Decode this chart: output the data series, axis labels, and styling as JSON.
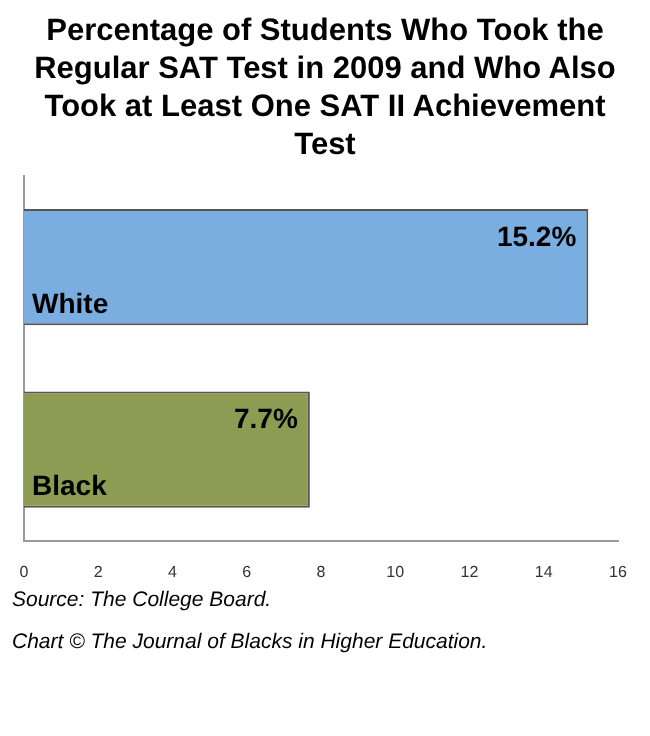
{
  "chart_data": {
    "type": "bar",
    "orientation": "horizontal",
    "title": "Percentage of Students Who Took the Regular SAT Test in 2009 and Who Also Took at Least One SAT II Achievement Test",
    "categories": [
      "White",
      "Black"
    ],
    "values": [
      15.2,
      7.7
    ],
    "colors": [
      "#7aaee0",
      "#8d9c52"
    ],
    "value_labels": [
      "15.2%",
      "7.7%"
    ],
    "xlim": [
      0,
      16
    ],
    "xticks": [
      0,
      2,
      4,
      6,
      8,
      10,
      12,
      14,
      16
    ],
    "grid": false,
    "annotations": [
      "Source: The College Board.",
      "Chart © The Journal of Blacks in Higher Education."
    ]
  }
}
